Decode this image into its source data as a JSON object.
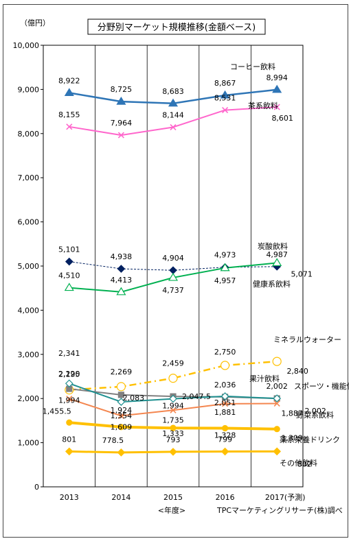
{
  "chart_data": {
    "type": "line",
    "title": "分野別マーケット規模推移(金額ベース)",
    "yunit": "（億円）",
    "xlabel": "<年度>",
    "source": "TPCマーケティングリサーチ(株)調べ",
    "categories": [
      "2013",
      "2014",
      "2015",
      "2016",
      "2017(予測)"
    ],
    "ylim": [
      0,
      10000
    ],
    "yticks": [
      "0",
      "1,000",
      "2,000",
      "3,000",
      "4,000",
      "5,000",
      "6,000",
      "7,000",
      "8,000",
      "9,000",
      "10,000"
    ],
    "grid": "vertical",
    "colors": {
      "coffee": "#2e75b6",
      "tea": "#ff66cc",
      "carbonated": "#002060",
      "health": "#00b050",
      "mineral": "#ffc000",
      "juice": "#808080",
      "sports": "#1f9090",
      "vegetable": "#f4864f",
      "herbal": "#ffc000",
      "other": "#ffc000"
    },
    "series": [
      {
        "key": "coffee",
        "name": "コーヒー飲料",
        "values": [
          8922,
          8725,
          8683,
          8867,
          8994
        ],
        "labels": [
          "8,922",
          "8,725",
          "8,683",
          "8,867",
          "8,994"
        ]
      },
      {
        "key": "tea",
        "name": "茶系飲料",
        "values": [
          8155,
          7964,
          8144,
          8531,
          8601
        ],
        "labels": [
          "8,155",
          "7,964",
          "8,144",
          "8,531",
          "8,601"
        ]
      },
      {
        "key": "carbonated",
        "name": "炭酸飲料",
        "values": [
          5101,
          4938,
          4904,
          4973,
          4987
        ],
        "labels": [
          "5,101",
          "4,938",
          "4,904",
          "4,973",
          "4,987"
        ]
      },
      {
        "key": "health",
        "name": "健康系飲料",
        "values": [
          4510,
          4413,
          4737,
          4957,
          5071
        ],
        "labels": [
          "4,510",
          "4,413",
          "4,737",
          "4,957",
          "5,071"
        ]
      },
      {
        "key": "mineral",
        "name": "ミネラルウォーター",
        "values": [
          2195,
          2269,
          2459,
          2750,
          2840
        ],
        "labels": [
          "2,195",
          "2,269",
          "2,459",
          "2,750",
          "2,840"
        ]
      },
      {
        "key": "juice",
        "name": "果汁飲料",
        "values": [
          2220,
          2083,
          2047.5,
          2036,
          2002
        ],
        "labels": [
          "2,220",
          "2,083",
          "2,047.5",
          "2,036",
          "2,002"
        ]
      },
      {
        "key": "sports",
        "name": "スポーツ・機能性",
        "values": [
          2341,
          1924,
          1994,
          2051,
          2002
        ],
        "labels": [
          "2,341",
          "1,924",
          "1,994",
          "2,051",
          "2,002"
        ]
      },
      {
        "key": "vegetable",
        "name": "野菜系飲料",
        "values": [
          1994,
          1609,
          1735,
          1881,
          1887
        ],
        "labels": [
          "1,994",
          "1,609",
          "1,735",
          "1,881",
          "1,887"
        ]
      },
      {
        "key": "herbal",
        "name": "薬系栄養ドリンク",
        "values": [
          1455.5,
          1354,
          1333,
          1328,
          1309
        ],
        "labels": [
          "1,455.5",
          "1,354",
          "1,333",
          "1,328",
          "1,309"
        ]
      },
      {
        "key": "other",
        "name": "その他飲料",
        "values": [
          801,
          778.5,
          793,
          799,
          802
        ],
        "labels": [
          "801",
          "778.5",
          "793",
          "799",
          "802"
        ]
      }
    ]
  }
}
